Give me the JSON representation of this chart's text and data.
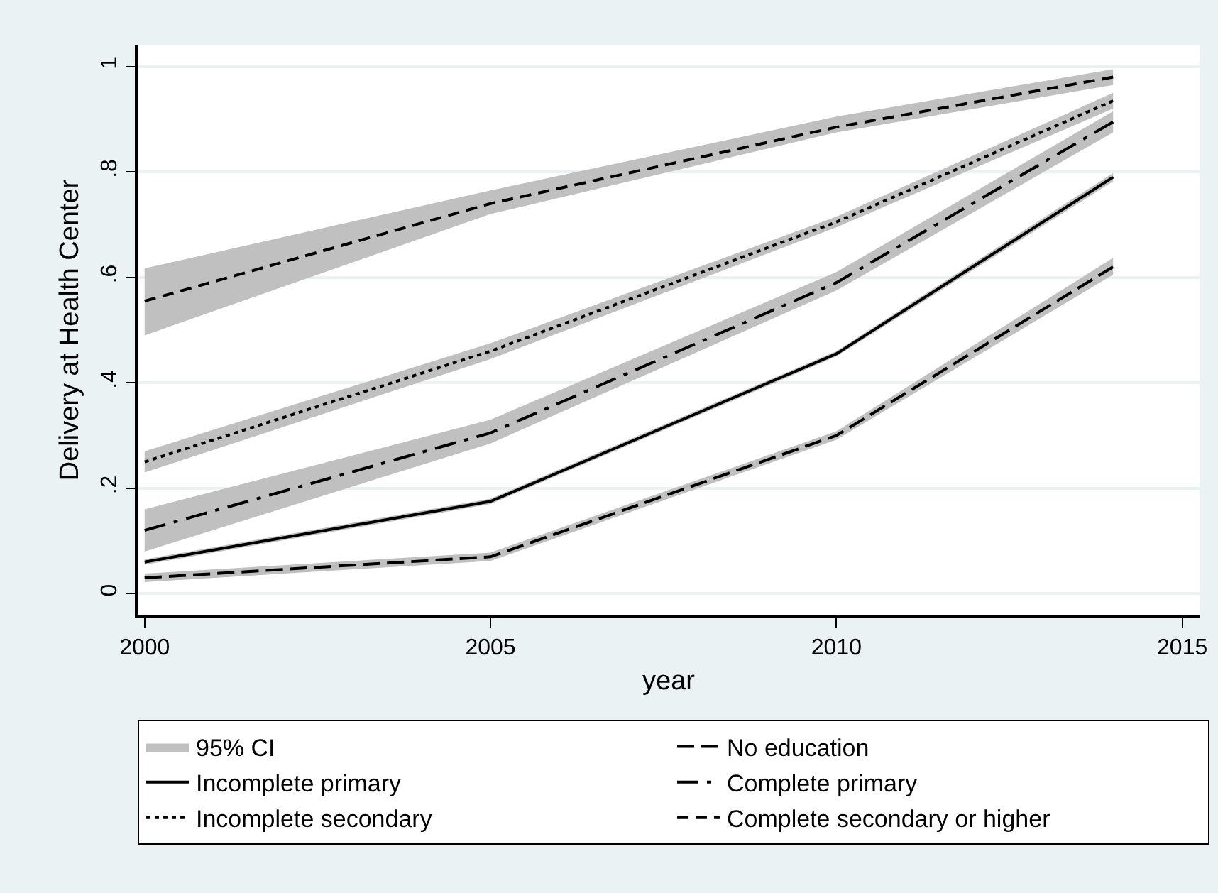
{
  "chart_data": {
    "type": "line",
    "xlabel": "year",
    "ylabel": "Delivery at Health Center",
    "x": [
      2000,
      2005,
      2010,
      2014
    ],
    "xlim": [
      1999.9,
      2015.25
    ],
    "xticks": [
      2000,
      2005,
      2010,
      2015
    ],
    "ylim": [
      -0.04,
      1.04
    ],
    "yticks": [
      0,
      {
        "value": 0.2,
        "label": ".2"
      },
      {
        "value": 0.4,
        "label": ".4"
      },
      {
        "value": 0.6,
        "label": ".6"
      },
      {
        "value": 0.8,
        "label": ".8"
      },
      1
    ],
    "grid": "y",
    "legend": "bottom",
    "marker": "none",
    "annotations": [
      "95% CI"
    ],
    "series": [
      {
        "name": "No education",
        "color": "#000000",
        "line_style": "longdash",
        "values": [
          0.03,
          0.07,
          0.3,
          0.62
        ],
        "lower": [
          0.022,
          0.062,
          0.292,
          0.605
        ],
        "upper": [
          0.038,
          0.078,
          0.308,
          0.637
        ]
      },
      {
        "name": "Incomplete primary",
        "color": "#000000",
        "line_style": "solid",
        "values": [
          0.06,
          0.175,
          0.455,
          0.79
        ],
        "lower": [
          0.055,
          0.17,
          0.45,
          0.782
        ],
        "upper": [
          0.065,
          0.18,
          0.46,
          0.798
        ]
      },
      {
        "name": "Complete primary",
        "color": "#000000",
        "line_style": "dashdot",
        "values": [
          0.12,
          0.305,
          0.59,
          0.895
        ],
        "lower": [
          0.08,
          0.285,
          0.575,
          0.875
        ],
        "upper": [
          0.16,
          0.33,
          0.61,
          0.915
        ]
      },
      {
        "name": "Incomplete secondary",
        "color": "#000000",
        "line_style": "dotted",
        "values": [
          0.25,
          0.46,
          0.705,
          0.935
        ],
        "lower": [
          0.23,
          0.445,
          0.695,
          0.92
        ],
        "upper": [
          0.27,
          0.475,
          0.715,
          0.95
        ]
      },
      {
        "name": "Complete secondary or higher",
        "color": "#000000",
        "line_style": "dashed",
        "values": [
          0.555,
          0.74,
          0.885,
          0.98
        ],
        "lower": [
          0.49,
          0.72,
          0.875,
          0.965
        ],
        "upper": [
          0.617,
          0.765,
          0.905,
          0.995
        ]
      }
    ]
  }
}
